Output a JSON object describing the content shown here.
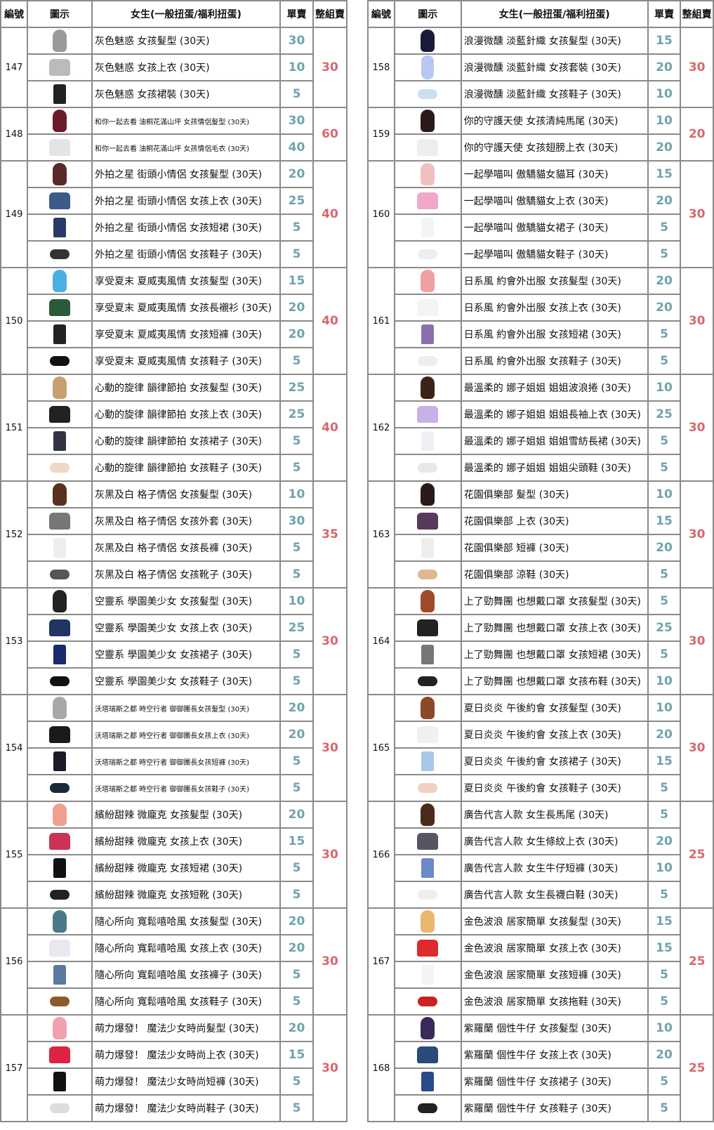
{
  "colors": {
    "single": "#6fa3ad",
    "set": "#d9676b",
    "border": "#8a8a8a"
  },
  "headers": {
    "id": "編號",
    "icon": "圖示",
    "name": "女生(一般扭蛋/福利扭蛋)",
    "single": "單賣",
    "set": "整組賣"
  },
  "left": [
    {
      "id": "147",
      "set": "30",
      "items": [
        {
          "n": "灰色魅惑 女孩髮型 (30天)",
          "p": "30",
          "i": "hair",
          "c": "#9a9a9a"
        },
        {
          "n": "灰色魅惑 女孩上衣 (30天)",
          "p": "10",
          "i": "top",
          "c": "#bbbbbb"
        },
        {
          "n": "灰色魅惑 女孩裙裝 (30天)",
          "p": "5",
          "i": "bottom",
          "c": "#222222"
        }
      ]
    },
    {
      "id": "148",
      "set": "60",
      "small": true,
      "items": [
        {
          "n": "和你一起去看 油桐花滿山坪 女孩情侶髮型 (30天)",
          "p": "30",
          "i": "hair",
          "c": "#6b1a2a"
        },
        {
          "n": "和你一起去看 油桐花滿山坪 女孩情侶毛衣 (30天)",
          "p": "40",
          "i": "top",
          "c": "#e4e4e4"
        }
      ]
    },
    {
      "id": "149",
      "set": "40",
      "items": [
        {
          "n": "外拍之星 街頭小情侶 女孩髮型 (30天)",
          "p": "20",
          "i": "hair",
          "c": "#5a2a2a"
        },
        {
          "n": "外拍之星 街頭小情侶 女孩上衣 (30天)",
          "p": "25",
          "i": "top",
          "c": "#3a5a8a"
        },
        {
          "n": "外拍之星 街頭小情侶 女孩短裙 (30天)",
          "p": "5",
          "i": "bottom",
          "c": "#2a3a6a"
        },
        {
          "n": "外拍之星 街頭小情侶 女孩鞋子 (30天)",
          "p": "5",
          "i": "shoes",
          "c": "#333333"
        }
      ]
    },
    {
      "id": "150",
      "set": "40",
      "items": [
        {
          "n": "享受夏末 夏威夷風情 女孩髮型 (30天)",
          "p": "15",
          "i": "hair",
          "c": "#4ab0e0"
        },
        {
          "n": "享受夏末 夏威夷風情 女孩長襯衫 (30天)",
          "p": "20",
          "i": "top",
          "c": "#2a5a3a"
        },
        {
          "n": "享受夏末 夏威夷風情 女孩短褲 (30天)",
          "p": "20",
          "i": "bottom",
          "c": "#222222"
        },
        {
          "n": "享受夏末 夏威夷風情 女孩鞋子 (30天)",
          "p": "5",
          "i": "shoes",
          "c": "#111111"
        }
      ]
    },
    {
      "id": "151",
      "set": "40",
      "items": [
        {
          "n": "心動的旋律 韻律節拍 女孩髮型  (30天)",
          "p": "25",
          "i": "hair",
          "c": "#c8a070"
        },
        {
          "n": "心動的旋律 韻律節拍 女孩上衣  (30天)",
          "p": "25",
          "i": "top",
          "c": "#222222"
        },
        {
          "n": "心動的旋律 韻律節拍 女孩裙子  (30天)",
          "p": "5",
          "i": "bottom",
          "c": "#333344"
        },
        {
          "n": "心動的旋律 韻律節拍 女孩鞋子  (30天)",
          "p": "5",
          "i": "shoes",
          "c": "#f0d8c8"
        }
      ]
    },
    {
      "id": "152",
      "set": "35",
      "items": [
        {
          "n": "灰黑及白 格子情侶 女孩髮型  (30天)",
          "p": "10",
          "i": "hair",
          "c": "#5a3020"
        },
        {
          "n": "灰黑及白 格子情侶 女孩外套  (30天)",
          "p": "30",
          "i": "top",
          "c": "#777777"
        },
        {
          "n": "灰黑及白 格子情侶 女孩長褲  (30天)",
          "p": "5",
          "i": "bottom",
          "c": "#eeeeee"
        },
        {
          "n": "灰黑及白 格子情侶 女孩靴子  (30天)",
          "p": "5",
          "i": "shoes",
          "c": "#555555"
        }
      ]
    },
    {
      "id": "153",
      "set": "30",
      "items": [
        {
          "n": "空靈系 學園美少女 女孩髮型  (30天)",
          "p": "10",
          "i": "hair",
          "c": "#222222"
        },
        {
          "n": "空靈系 學園美少女 女孩上衣  (30天)",
          "p": "25",
          "i": "top",
          "c": "#223366"
        },
        {
          "n": "空靈系 學園美少女 女孩裙子  (30天)",
          "p": "5",
          "i": "bottom",
          "c": "#1a2a6a"
        },
        {
          "n": "空靈系 學園美少女 女孩鞋子  (30天)",
          "p": "5",
          "i": "shoes",
          "c": "#111111"
        }
      ]
    },
    {
      "id": "154",
      "set": "30",
      "small": true,
      "items": [
        {
          "n": "沃塔瑞斯之都 時空行者 御御團長女孩髮型 (30天)",
          "p": "20",
          "i": "hair",
          "c": "#a8a8a8"
        },
        {
          "n": "沃塔瑞斯之都 時空行者 御御團長女孩上衣 (30天)",
          "p": "20",
          "i": "top",
          "c": "#1a1a1a"
        },
        {
          "n": "沃塔瑞斯之都 時空行者 御御團長女孩短褲 (30天)",
          "p": "5",
          "i": "bottom",
          "c": "#1a1a2a"
        },
        {
          "n": "沃塔瑞斯之都 時空行者 御御團長女孩鞋子 (30天)",
          "p": "5",
          "i": "shoes",
          "c": "#1a2a3a"
        }
      ]
    },
    {
      "id": "155",
      "set": "30",
      "items": [
        {
          "n": "繽紛甜辣 微龐克 女孩髮型 (30天)",
          "p": "20",
          "i": "hair",
          "c": "#f0a090"
        },
        {
          "n": "繽紛甜辣 微龐克 女孩上衣 (30天)",
          "p": "15",
          "i": "top",
          "c": "#cc3355"
        },
        {
          "n": "繽紛甜辣 微龐克 女孩短裙 (30天)",
          "p": "5",
          "i": "bottom",
          "c": "#111111"
        },
        {
          "n": "繽紛甜辣 微龐克 女孩短靴 (30天)",
          "p": "5",
          "i": "shoes",
          "c": "#222222"
        }
      ]
    },
    {
      "id": "156",
      "set": "30",
      "items": [
        {
          "n": "隨心所向 寬鬆嘻哈風 女孩髮型 (30天)",
          "p": "20",
          "i": "hair",
          "c": "#4a7a8a"
        },
        {
          "n": "隨心所向 寬鬆嘻哈風 女孩上衣 (30天)",
          "p": "20",
          "i": "top",
          "c": "#e8e8f0"
        },
        {
          "n": "隨心所向 寬鬆嘻哈風 女孩褲子 (30天)",
          "p": "5",
          "i": "bottom",
          "c": "#5a7aa0"
        },
        {
          "n": "隨心所向 寬鬆嘻哈風 女孩鞋子 (30天)",
          "p": "5",
          "i": "shoes",
          "c": "#8a5a2a"
        }
      ]
    },
    {
      "id": "157",
      "set": "30",
      "items": [
        {
          "n": "萌力爆發！ 魔法少女時尚髮型 (30天)",
          "p": "20",
          "i": "hair",
          "c": "#f0a0b0"
        },
        {
          "n": "萌力爆發！ 魔法少女時尚上衣 (30天)",
          "p": "15",
          "i": "top",
          "c": "#dd2244"
        },
        {
          "n": "萌力爆發！ 魔法少女時尚短褲 (30天)",
          "p": "5",
          "i": "bottom",
          "c": "#111111"
        },
        {
          "n": "萌力爆發！ 魔法少女時尚鞋子 (30天)",
          "p": "5",
          "i": "shoes",
          "c": "#dddddd"
        }
      ]
    }
  ],
  "right": [
    {
      "id": "158",
      "set": "30",
      "items": [
        {
          "n": "浪漫微醺 淡藍針織 女孩髮型 (30天)",
          "p": "15",
          "i": "hair",
          "c": "#1a1a3a"
        },
        {
          "n": "浪漫微醺 淡藍針織 女孩套裝  (30天)",
          "p": "20",
          "i": "set-i",
          "c": "#b8c8f0"
        },
        {
          "n": "浪漫微醺 淡藍針織 女孩鞋子  (30天)",
          "p": "10",
          "i": "shoes",
          "c": "#c8e0f0"
        }
      ]
    },
    {
      "id": "159",
      "set": "20",
      "items": [
        {
          "n": "你的守護天使 女孩清純馬尾 (30天)",
          "p": "10",
          "i": "hair",
          "c": "#2a1a1a"
        },
        {
          "n": "你的守護天使 女孩翅膀上衣 (30天)",
          "p": "20",
          "i": "top",
          "c": "#eeeeee"
        }
      ]
    },
    {
      "id": "160",
      "set": "30",
      "items": [
        {
          "n": "一起學喵叫 傲驕貓女貓耳  (30天)",
          "p": "15",
          "i": "hair",
          "c": "#f0c0c0"
        },
        {
          "n": "一起學喵叫 傲驕貓女上衣  (30天)",
          "p": "20",
          "i": "top",
          "c": "#f0a8c8"
        },
        {
          "n": "一起學喵叫 傲驕貓女裙子  (30天)",
          "p": "5",
          "i": "bottom",
          "c": "#f4f4f4"
        },
        {
          "n": "一起學喵叫 傲驕貓女鞋子  (30天)",
          "p": "5",
          "i": "shoes",
          "c": "#eeeeee"
        }
      ]
    },
    {
      "id": "161",
      "set": "30",
      "items": [
        {
          "n": "日系風 約會外出服 女孩髮型 (30天)",
          "p": "20",
          "i": "hair",
          "c": "#f0a0a0"
        },
        {
          "n": "日系風 約會外出服 女孩上衣 (30天)",
          "p": "20",
          "i": "top",
          "c": "#f4f4f4"
        },
        {
          "n": "日系風 約會外出服 女孩短裙 (30天)",
          "p": "5",
          "i": "bottom",
          "c": "#8a70b0"
        },
        {
          "n": "日系風 約會外出服 女孩鞋子 (30天)",
          "p": "5",
          "i": "shoes",
          "c": "#eeeeee"
        }
      ]
    },
    {
      "id": "162",
      "set": "30",
      "items": [
        {
          "n": "最溫柔的 娜子姐姐 姐姐波浪捲 (30天)",
          "p": "10",
          "i": "hair",
          "c": "#3a2418"
        },
        {
          "n": "最溫柔的 娜子姐姐 姐姐長袖上衣 (30天)",
          "p": "25",
          "i": "top",
          "c": "#c8b0e8"
        },
        {
          "n": "最溫柔的 娜子姐姐 姐姐雪紡長裙 (30天)",
          "p": "5",
          "i": "bottom",
          "c": "#f0f0f4"
        },
        {
          "n": "最溫柔的 娜子姐姐 姐姐尖頭鞋 (30天)",
          "p": "5",
          "i": "shoes",
          "c": "#e8e8e8"
        }
      ]
    },
    {
      "id": "163",
      "set": "30",
      "items": [
        {
          "n": "花園俱樂部 髮型 (30天)",
          "p": "10",
          "i": "hair",
          "c": "#2a1a1a"
        },
        {
          "n": "花園俱樂部 上衣 (30天)",
          "p": "15",
          "i": "top",
          "c": "#5a3a5a"
        },
        {
          "n": "花園俱樂部 短褲 (30天)",
          "p": "20",
          "i": "bottom",
          "c": "#eeeeee"
        },
        {
          "n": "花園俱樂部 涼鞋 (30天)",
          "p": "5",
          "i": "shoes",
          "c": "#e0b890"
        }
      ]
    },
    {
      "id": "164",
      "set": "30",
      "items": [
        {
          "n": "上了勁舞團 也想戴口罩 女孩髮型 (30天)",
          "p": "5",
          "i": "hair",
          "c": "#a04a2a"
        },
        {
          "n": "上了勁舞團 也想戴口罩 女孩上衣 (30天)",
          "p": "25",
          "i": "top",
          "c": "#222222"
        },
        {
          "n": "上了勁舞團 也想戴口罩 女孩短裙 (30天)",
          "p": "5",
          "i": "bottom",
          "c": "#777777"
        },
        {
          "n": "上了勁舞團 也想戴口罩 女孩布鞋 (30天)",
          "p": "10",
          "i": "shoes",
          "c": "#222222"
        }
      ]
    },
    {
      "id": "165",
      "set": "30",
      "items": [
        {
          "n": "夏日炎炎 午後約會 女孩髮型  (30天)",
          "p": "10",
          "i": "hair",
          "c": "#8a4a2a"
        },
        {
          "n": "夏日炎炎 午後約會 女孩上衣  (30天)",
          "p": "20",
          "i": "top",
          "c": "#f0f0f0"
        },
        {
          "n": "夏日炎炎 午後約會 女孩裙子  (30天)",
          "p": "15",
          "i": "bottom",
          "c": "#a8c8e8"
        },
        {
          "n": "夏日炎炎 午後約會 女孩鞋子  (30天)",
          "p": "5",
          "i": "shoes",
          "c": "#f0d0c0"
        }
      ]
    },
    {
      "id": "166",
      "set": "25",
      "items": [
        {
          "n": "廣告代言人款 女生長馬尾 (30天)",
          "p": "5",
          "i": "hair",
          "c": "#4a2a1a"
        },
        {
          "n": "廣告代言人款 女生條紋上衣 (30天)",
          "p": "20",
          "i": "top",
          "c": "#555566"
        },
        {
          "n": "廣告代言人款 女生牛仔短褲 (30天)",
          "p": "10",
          "i": "bottom",
          "c": "#6a8ac8"
        },
        {
          "n": "廣告代言人款 女生長襪白鞋 (30天)",
          "p": "5",
          "i": "shoes",
          "c": "#eeeeee"
        }
      ]
    },
    {
      "id": "167",
      "set": "25",
      "items": [
        {
          "n": "金色波浪 居家簡單 女孩髮型 (30天)",
          "p": "15",
          "i": "hair",
          "c": "#e8b870"
        },
        {
          "n": "金色波浪 居家簡單 女孩上衣 (30天)",
          "p": "15",
          "i": "top",
          "c": "#dd2a2a"
        },
        {
          "n": "金色波浪 居家簡單 女孩短褲 (30天)",
          "p": "5",
          "i": "bottom",
          "c": "#f4f4f4"
        },
        {
          "n": "金色波浪 居家簡單 女孩拖鞋 (30天)",
          "p": "5",
          "i": "shoes",
          "c": "#cc2222"
        }
      ]
    },
    {
      "id": "168",
      "set": "25",
      "items": [
        {
          "n": "紫羅蘭 個性牛仔 女孩髮型 (30天)",
          "p": "10",
          "i": "hair",
          "c": "#3a2a5a"
        },
        {
          "n": "紫羅蘭 個性牛仔 女孩上衣 (30天)",
          "p": "20",
          "i": "top",
          "c": "#2a4a7a"
        },
        {
          "n": "紫羅蘭 個性牛仔 女孩裙子 (30天)",
          "p": "5",
          "i": "bottom",
          "c": "#2a4a8a"
        },
        {
          "n": "紫羅蘭 個性牛仔 女孩鞋子 (30天)",
          "p": "5",
          "i": "shoes",
          "c": "#222222"
        }
      ]
    }
  ]
}
